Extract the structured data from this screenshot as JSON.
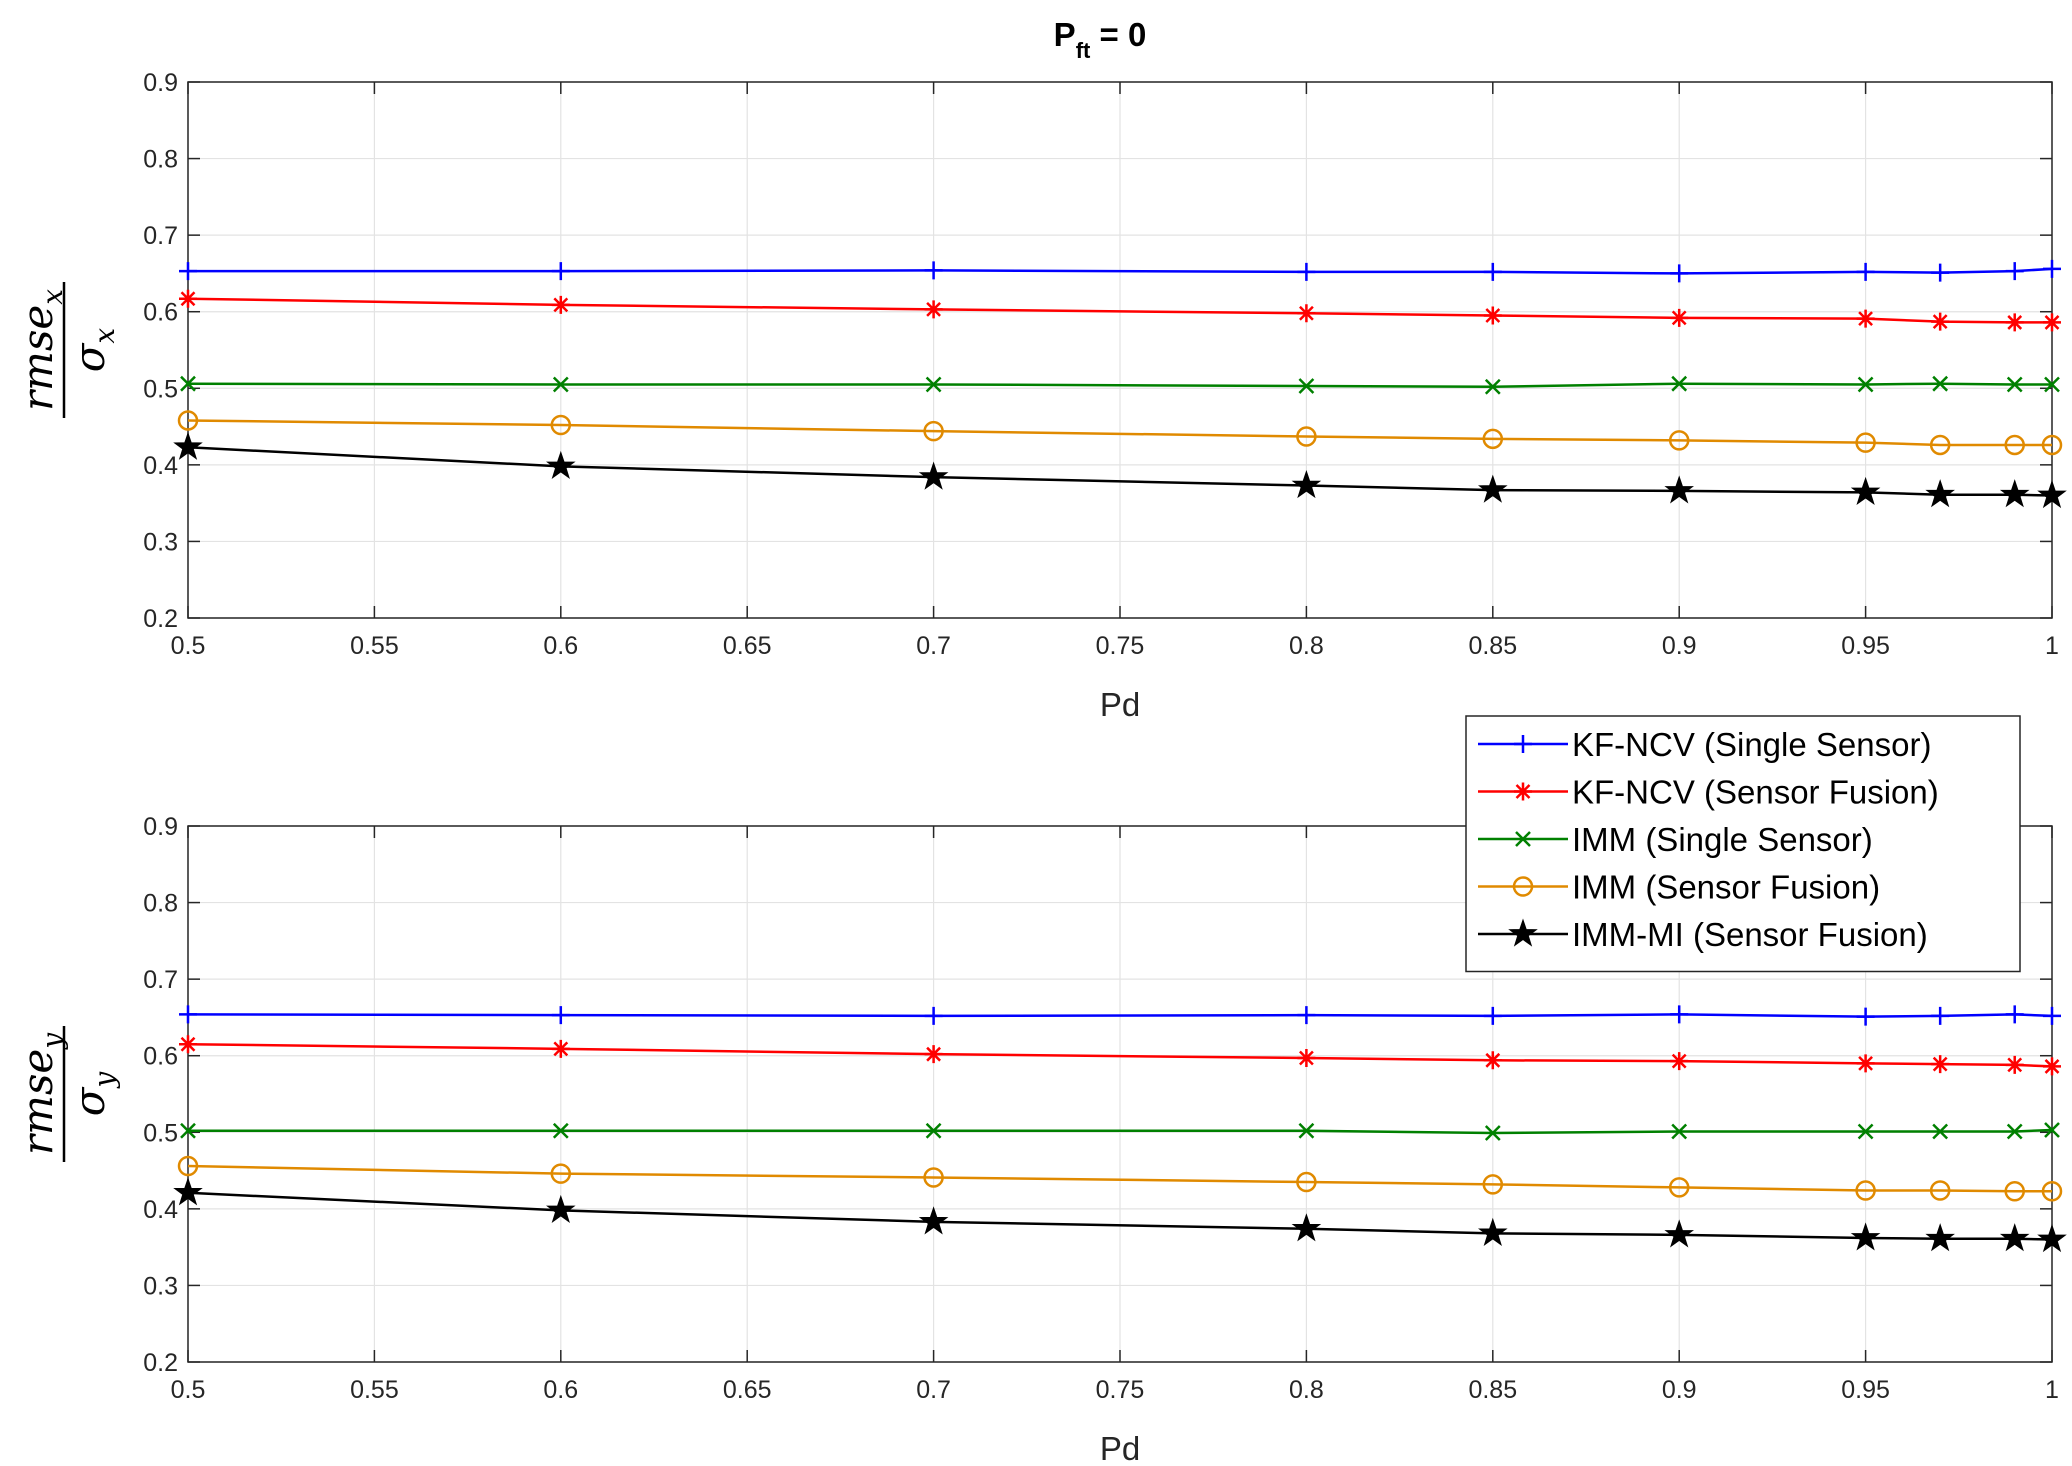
{
  "figure": {
    "title_main": "P",
    "title_sub": "ft",
    "title_rest": " = 0"
  },
  "chart_data": [
    {
      "type": "line",
      "x": [
        0.5,
        0.6,
        0.7,
        0.8,
        0.85,
        0.9,
        0.95,
        0.97,
        0.99,
        1.0
      ],
      "xlabel": "Pd",
      "ylabel_num": "rmse",
      "ylabel_num_sub": "x",
      "ylabel_den": "σ",
      "ylabel_den_sub": "x",
      "xlim": [
        0.5,
        1.0
      ],
      "ylim": [
        0.2,
        0.9
      ],
      "xticks": [
        "0.5",
        "0.55",
        "0.6",
        "0.65",
        "0.7",
        "0.75",
        "0.8",
        "0.85",
        "0.9",
        "0.95",
        "1"
      ],
      "yticks": [
        "0.2",
        "0.3",
        "0.4",
        "0.5",
        "0.6",
        "0.7",
        "0.8",
        "0.9"
      ],
      "grid": true,
      "series": [
        {
          "name": "KF-NCV (Single Sensor)",
          "color": "#0000ff",
          "marker": "plus",
          "values": [
            0.653,
            0.653,
            0.654,
            0.652,
            0.652,
            0.65,
            0.652,
            0.651,
            0.653,
            0.656
          ]
        },
        {
          "name": "KF-NCV (Sensor Fusion)",
          "color": "#ff0000",
          "marker": "asterisk",
          "values": [
            0.617,
            0.609,
            0.603,
            0.598,
            0.595,
            0.592,
            0.591,
            0.587,
            0.586,
            0.586
          ]
        },
        {
          "name": "IMM (Single Sensor)",
          "color": "#008000",
          "marker": "x",
          "values": [
            0.506,
            0.505,
            0.505,
            0.503,
            0.502,
            0.506,
            0.505,
            0.506,
            0.505,
            0.505
          ]
        },
        {
          "name": "IMM (Sensor Fusion)",
          "color": "#e08a00",
          "marker": "circle",
          "values": [
            0.458,
            0.452,
            0.444,
            0.437,
            0.434,
            0.432,
            0.429,
            0.426,
            0.426,
            0.426
          ]
        },
        {
          "name": "IMM-MI (Sensor Fusion)",
          "color": "#000000",
          "marker": "star",
          "values": [
            0.423,
            0.398,
            0.384,
            0.373,
            0.367,
            0.366,
            0.364,
            0.361,
            0.361,
            0.36
          ]
        }
      ]
    },
    {
      "type": "line",
      "x": [
        0.5,
        0.6,
        0.7,
        0.8,
        0.85,
        0.9,
        0.95,
        0.97,
        0.99,
        1.0
      ],
      "xlabel": "Pd",
      "ylabel_num": "rmse",
      "ylabel_num_sub": "y",
      "ylabel_den": "σ",
      "ylabel_den_sub": "y",
      "xlim": [
        0.5,
        1.0
      ],
      "ylim": [
        0.2,
        0.9
      ],
      "xticks": [
        "0.5",
        "0.55",
        "0.6",
        "0.65",
        "0.7",
        "0.75",
        "0.8",
        "0.85",
        "0.9",
        "0.95",
        "1"
      ],
      "yticks": [
        "0.2",
        "0.3",
        "0.4",
        "0.5",
        "0.6",
        "0.7",
        "0.8",
        "0.9"
      ],
      "grid": true,
      "legend": "top-right",
      "series": [
        {
          "name": "KF-NCV (Single Sensor)",
          "color": "#0000ff",
          "marker": "plus",
          "values": [
            0.654,
            0.653,
            0.652,
            0.653,
            0.652,
            0.654,
            0.651,
            0.652,
            0.654,
            0.652
          ]
        },
        {
          "name": "KF-NCV (Sensor Fusion)",
          "color": "#ff0000",
          "marker": "asterisk",
          "values": [
            0.615,
            0.609,
            0.602,
            0.597,
            0.594,
            0.593,
            0.59,
            0.589,
            0.588,
            0.586
          ]
        },
        {
          "name": "IMM (Single Sensor)",
          "color": "#008000",
          "marker": "x",
          "values": [
            0.502,
            0.502,
            0.502,
            0.502,
            0.499,
            0.501,
            0.501,
            0.501,
            0.501,
            0.503
          ]
        },
        {
          "name": "IMM (Sensor Fusion)",
          "color": "#e08a00",
          "marker": "circle",
          "values": [
            0.456,
            0.446,
            0.441,
            0.435,
            0.432,
            0.428,
            0.424,
            0.424,
            0.423,
            0.423
          ]
        },
        {
          "name": "IMM-MI (Sensor Fusion)",
          "color": "#000000",
          "marker": "star",
          "values": [
            0.421,
            0.398,
            0.383,
            0.374,
            0.368,
            0.366,
            0.362,
            0.361,
            0.361,
            0.36
          ]
        }
      ]
    }
  ]
}
